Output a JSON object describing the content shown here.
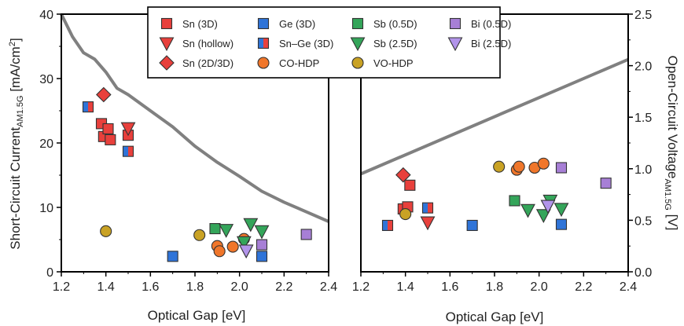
{
  "chart_data": [
    {
      "type": "scatter",
      "panel": "left",
      "xlabel": "Optical Gap [eV]",
      "ylabel_main": "Short-Circuit Current",
      "ylabel_sub": "AM1.5G",
      "ylabel_unit": " [mA/cm",
      "ylabel_sup": "2",
      "ylabel_close": "]",
      "xlim": [
        1.2,
        2.4
      ],
      "ylim": [
        0,
        40
      ],
      "xticks": [
        "1.2",
        "1.4",
        "1.6",
        "1.8",
        "2.0",
        "2.2",
        "2.4"
      ],
      "yticks": [
        "0",
        "10",
        "20",
        "30",
        "40"
      ],
      "limit_curve": {
        "x": [
          1.2,
          1.25,
          1.3,
          1.35,
          1.4,
          1.45,
          1.5,
          1.6,
          1.62,
          1.7,
          1.8,
          1.9,
          2.0,
          2.1,
          2.2,
          2.3,
          2.4
        ],
        "y": [
          40,
          36.5,
          34,
          33,
          31,
          28.5,
          27.5,
          25,
          24.5,
          22.5,
          19.5,
          17,
          14.8,
          12.5,
          10.8,
          9.3,
          7.8
        ]
      },
      "series": [
        {
          "name": "Sn (3D)",
          "points": [
            [
              1.38,
              23
            ],
            [
              1.39,
              21
            ],
            [
              1.41,
              22.2
            ],
            [
              1.42,
              20.5
            ],
            [
              1.5,
              21.2
            ]
          ]
        },
        {
          "name": "Sn (hollow)",
          "points": [
            [
              1.5,
              22.3
            ]
          ]
        },
        {
          "name": "Sn (2D/3D)",
          "points": [
            [
              1.39,
              27.5
            ]
          ]
        },
        {
          "name": "Ge (3D)",
          "points": [
            [
              1.7,
              2.4
            ],
            [
              2.1,
              2.4
            ]
          ]
        },
        {
          "name": "Sn–Ge (3D)",
          "points": [
            [
              1.32,
              25.6
            ],
            [
              1.5,
              18.7
            ]
          ]
        },
        {
          "name": "CO-HDP",
          "points": [
            [
              1.9,
              4
            ],
            [
              1.91,
              3.2
            ],
            [
              1.97,
              3.9
            ],
            [
              2.02,
              5.1
            ]
          ]
        },
        {
          "name": "Sb (0.5D)",
          "points": [
            [
              1.89,
              6.7
            ]
          ]
        },
        {
          "name": "Sb (2.5D)",
          "points": [
            [
              1.94,
              6.5
            ],
            [
              2.02,
              4.6
            ],
            [
              2.05,
              7.4
            ],
            [
              2.1,
              6.3
            ]
          ]
        },
        {
          "name": "VO-HDP",
          "points": [
            [
              1.4,
              6.3
            ],
            [
              1.82,
              5.7
            ]
          ]
        },
        {
          "name": "Bi (0.5D)",
          "points": [
            [
              2.1,
              4.2
            ],
            [
              2.3,
              5.8
            ]
          ]
        },
        {
          "name": "Bi (2.5D)",
          "points": [
            [
              2.03,
              3.3
            ]
          ]
        }
      ]
    },
    {
      "type": "scatter",
      "panel": "right",
      "xlabel": "Optical Gap [eV]",
      "ylabel_main": "Open-Circuit Voltage",
      "ylabel_sub": "AM1.5G",
      "ylabel_unit": " [V]",
      "xlim": [
        1.2,
        2.4
      ],
      "ylim": [
        0,
        2.5
      ],
      "xticks": [
        "1.2",
        "1.4",
        "1.6",
        "1.8",
        "2.0",
        "2.2",
        "2.4"
      ],
      "yticks": [
        "0.0",
        "0.5",
        "1.0",
        "1.5",
        "2.0",
        "2.5"
      ],
      "limit_curve": {
        "x": [
          1.2,
          2.4
        ],
        "y": [
          0.95,
          2.06
        ]
      },
      "series": [
        {
          "name": "Sn (3D)",
          "points": [
            [
              1.39,
              0.61
            ],
            [
              1.41,
              0.63
            ],
            [
              1.42,
              0.84
            ]
          ]
        },
        {
          "name": "Sn (hollow)",
          "points": [
            [
              1.5,
              0.48
            ]
          ]
        },
        {
          "name": "Sn (2D/3D)",
          "points": [
            [
              1.39,
              0.94
            ]
          ]
        },
        {
          "name": "Ge (3D)",
          "points": [
            [
              1.7,
              0.45
            ],
            [
              2.1,
              0.46
            ]
          ]
        },
        {
          "name": "Sn–Ge (3D)",
          "points": [
            [
              1.32,
              0.45
            ],
            [
              1.5,
              0.62
            ]
          ]
        },
        {
          "name": "CO-HDP",
          "points": [
            [
              1.9,
              0.99
            ],
            [
              1.91,
              1.02
            ],
            [
              1.98,
              1.01
            ],
            [
              2.02,
              1.05
            ]
          ]
        },
        {
          "name": "Sb (0.5D)",
          "points": [
            [
              1.89,
              0.69
            ]
          ]
        },
        {
          "name": "Sb (2.5D)",
          "points": [
            [
              1.95,
              0.6
            ],
            [
              2.02,
              0.55
            ],
            [
              2.05,
              0.69
            ],
            [
              2.1,
              0.61
            ]
          ]
        },
        {
          "name": "VO-HDP",
          "points": [
            [
              1.4,
              0.56
            ],
            [
              1.82,
              1.02
            ]
          ]
        },
        {
          "name": "Bi (0.5D)",
          "points": [
            [
              2.1,
              1.01
            ],
            [
              2.3,
              0.86
            ]
          ]
        },
        {
          "name": "Bi (2.5D)",
          "points": [
            [
              2.04,
              0.64
            ]
          ]
        }
      ]
    }
  ],
  "legend": [
    {
      "label": "Sn (3D)",
      "marker": "square",
      "color": "#e8403c"
    },
    {
      "label": "Sn (hollow)",
      "marker": "triangle-down",
      "color": "#e8403c"
    },
    {
      "label": "Sn (2D/3D)",
      "marker": "diamond",
      "color": "#e8403c"
    },
    {
      "label": "Ge (3D)",
      "marker": "square",
      "color": "#2f74d8"
    },
    {
      "label": "Sn–Ge (3D)",
      "marker": "split-square",
      "color": "#2f74d8",
      "color2": "#e8403c"
    },
    {
      "label": "CO-HDP",
      "marker": "circle",
      "color": "#f0762a"
    },
    {
      "label": "Sb (0.5D)",
      "marker": "square",
      "color": "#34a55a"
    },
    {
      "label": "Sb (2.5D)",
      "marker": "triangle-down",
      "color": "#34a55a"
    },
    {
      "label": "VO-HDP",
      "marker": "circle",
      "color": "#c9a224"
    },
    {
      "label": "Bi (0.5D)",
      "marker": "square",
      "color": "#a77fd6"
    },
    {
      "label": "Bi (2.5D)",
      "marker": "triangle-down",
      "color": "#b294ea"
    }
  ],
  "colors": {
    "limit_curve": "#808080",
    "axis": "#000000"
  }
}
